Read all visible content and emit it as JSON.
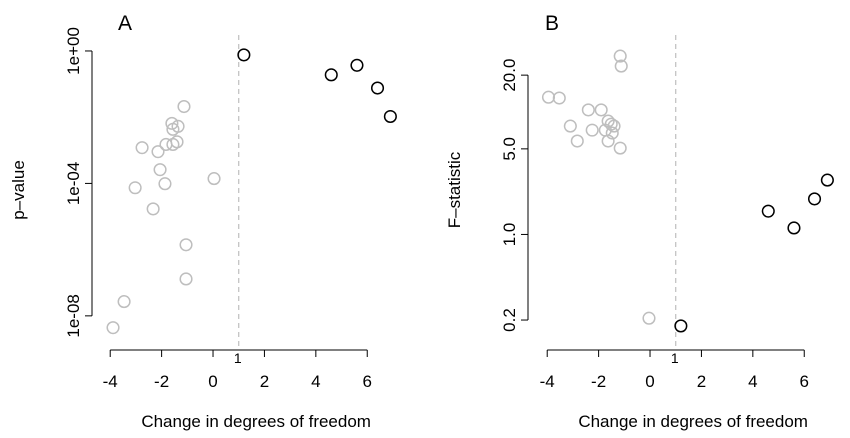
{
  "chart_data": [
    {
      "type": "scatter",
      "title": "A",
      "xlabel": "Change in degrees of freedom",
      "ylabel": "p–value",
      "log_y": true,
      "xlim": [
        -4.3,
        7.5
      ],
      "ylim": [
        2e-09,
        2
      ],
      "xticks": [
        -4,
        -2,
        0,
        2,
        4,
        6
      ],
      "yticks": [
        {
          "value": 1,
          "label": "1e+00"
        },
        {
          "value": 0.0001,
          "label": "1e-04"
        },
        {
          "value": 1e-08,
          "label": "1e-08"
        }
      ],
      "vline": 1,
      "series": [
        {
          "color": "#bebebe",
          "x": [
            -1.13,
            -1.6,
            -1.36,
            -1.56,
            -1.83,
            -1.4,
            -1.56,
            -2.76,
            -2.14,
            -2.06,
            -1.87,
            0.04,
            -3.03,
            -2.33,
            -1.05,
            -1.05,
            -3.46,
            -3.89
          ],
          "values": [
            0.021,
            0.0065,
            0.0053,
            0.0043,
            0.0015,
            0.0018,
            0.0015,
            0.0012,
            0.00091,
            0.00026,
            9.8e-05,
            0.00014,
            7.4e-05,
            1.7e-05,
            1.4e-06,
            1.3e-07,
            2.7e-08,
            4.4e-09
          ]
        },
        {
          "color": "#000000",
          "x": [
            1.2,
            4.6,
            5.6,
            6.4,
            6.9
          ],
          "values": [
            0.76,
            0.19,
            0.37,
            0.076,
            0.0105
          ]
        }
      ]
    },
    {
      "type": "scatter",
      "title": "B",
      "xlabel": "Change in degrees of freedom",
      "ylabel": "F–statistic",
      "log_y": true,
      "xlim": [
        -4.3,
        7.5
      ],
      "ylim": [
        0.14,
        38
      ],
      "xticks": [
        -4,
        -2,
        0,
        2,
        4,
        6
      ],
      "yticks": [
        {
          "value": 0.2,
          "label": "0.2"
        },
        {
          "value": 1,
          "label": "1.0"
        },
        {
          "value": 5,
          "label": "5.0"
        },
        {
          "value": 20,
          "label": "20.0"
        }
      ],
      "vline": 1,
      "series": [
        {
          "color": "#bebebe",
          "x": [
            -1.16,
            -1.12,
            -3.95,
            -3.53,
            -2.4,
            -1.9,
            -1.63,
            -3.1,
            -1.51,
            -1.4,
            -2.25,
            -1.74,
            -1.47,
            -1.63,
            -1.16,
            -2.83,
            -0.04
          ],
          "values": [
            28.6,
            23.7,
            13.2,
            13.0,
            10.4,
            10.4,
            8.43,
            7.67,
            7.96,
            7.67,
            7.11,
            7.11,
            6.73,
            5.79,
            5.07,
            5.79,
            0.207
          ]
        },
        {
          "color": "#000000",
          "x": [
            1.2,
            4.6,
            5.6,
            6.4,
            6.9
          ],
          "values": [
            0.179,
            1.55,
            1.13,
            1.95,
            2.78
          ]
        }
      ]
    }
  ]
}
